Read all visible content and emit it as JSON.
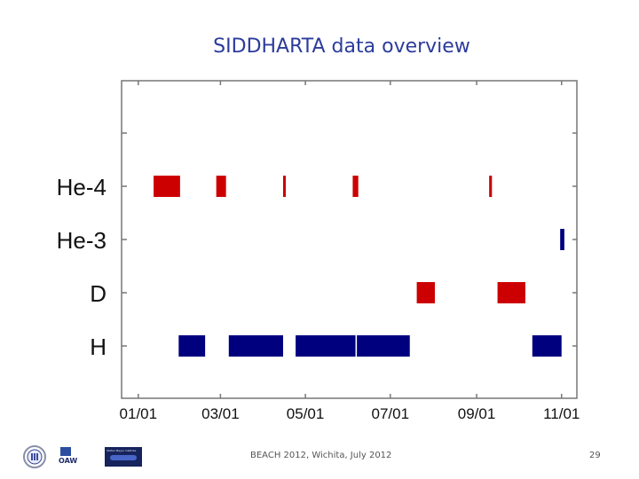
{
  "slide": {
    "title": "SIDDHARTA data overview",
    "footer": "BEACH 2012, Wichita, July 2012",
    "page_number": "29"
  },
  "logos": {
    "oaw_text": "OAW",
    "banner_text": "Stefan Meyer Institute"
  },
  "colors": {
    "hydrogen_series": "#00007f",
    "other_series": "#cc0000",
    "title": "#2c3c9c"
  },
  "chart_data": {
    "type": "gantt",
    "title": "",
    "categories": [
      "He-4",
      "He-3",
      "D",
      "H"
    ],
    "x_unit": "date (2009)",
    "xlim": [
      "12-20",
      "11-12"
    ],
    "x_ticks": [
      {
        "date": "01-01",
        "label": "01/01"
      },
      {
        "date": "03-01",
        "label": "03/01"
      },
      {
        "date": "05-01",
        "label": "05/01"
      },
      {
        "date": "07-01",
        "label": "07/01"
      },
      {
        "date": "09-01",
        "label": "09/01"
      },
      {
        "date": "11-01",
        "label": "11/01"
      }
    ],
    "grid": false,
    "intervals": [
      {
        "category": "He-4",
        "start": "01-12",
        "end": "01-31",
        "color": "#cc0000"
      },
      {
        "category": "He-4",
        "start": "02-26",
        "end": "03-05",
        "color": "#cc0000"
      },
      {
        "category": "He-4",
        "start": "04-15",
        "end": "04-16",
        "color": "#cc0000"
      },
      {
        "category": "He-4",
        "start": "06-04",
        "end": "06-08",
        "color": "#cc0000"
      },
      {
        "category": "He-4",
        "start": "09-10",
        "end": "09-12",
        "color": "#cc0000"
      },
      {
        "category": "He-3",
        "start": "10-31",
        "end": "11-03",
        "color": "#00007f"
      },
      {
        "category": "D",
        "start": "07-20",
        "end": "08-02",
        "color": "#cc0000"
      },
      {
        "category": "D",
        "start": "09-16",
        "end": "10-06",
        "color": "#cc0000"
      },
      {
        "category": "H",
        "start": "01-30",
        "end": "02-18",
        "color": "#00007f"
      },
      {
        "category": "H",
        "start": "03-07",
        "end": "04-15",
        "color": "#00007f"
      },
      {
        "category": "H",
        "start": "04-24",
        "end": "06-06",
        "color": "#00007f"
      },
      {
        "category": "H",
        "start": "06-07",
        "end": "07-15",
        "color": "#00007f"
      },
      {
        "category": "H",
        "start": "10-11",
        "end": "11-01",
        "color": "#00007f"
      }
    ]
  }
}
